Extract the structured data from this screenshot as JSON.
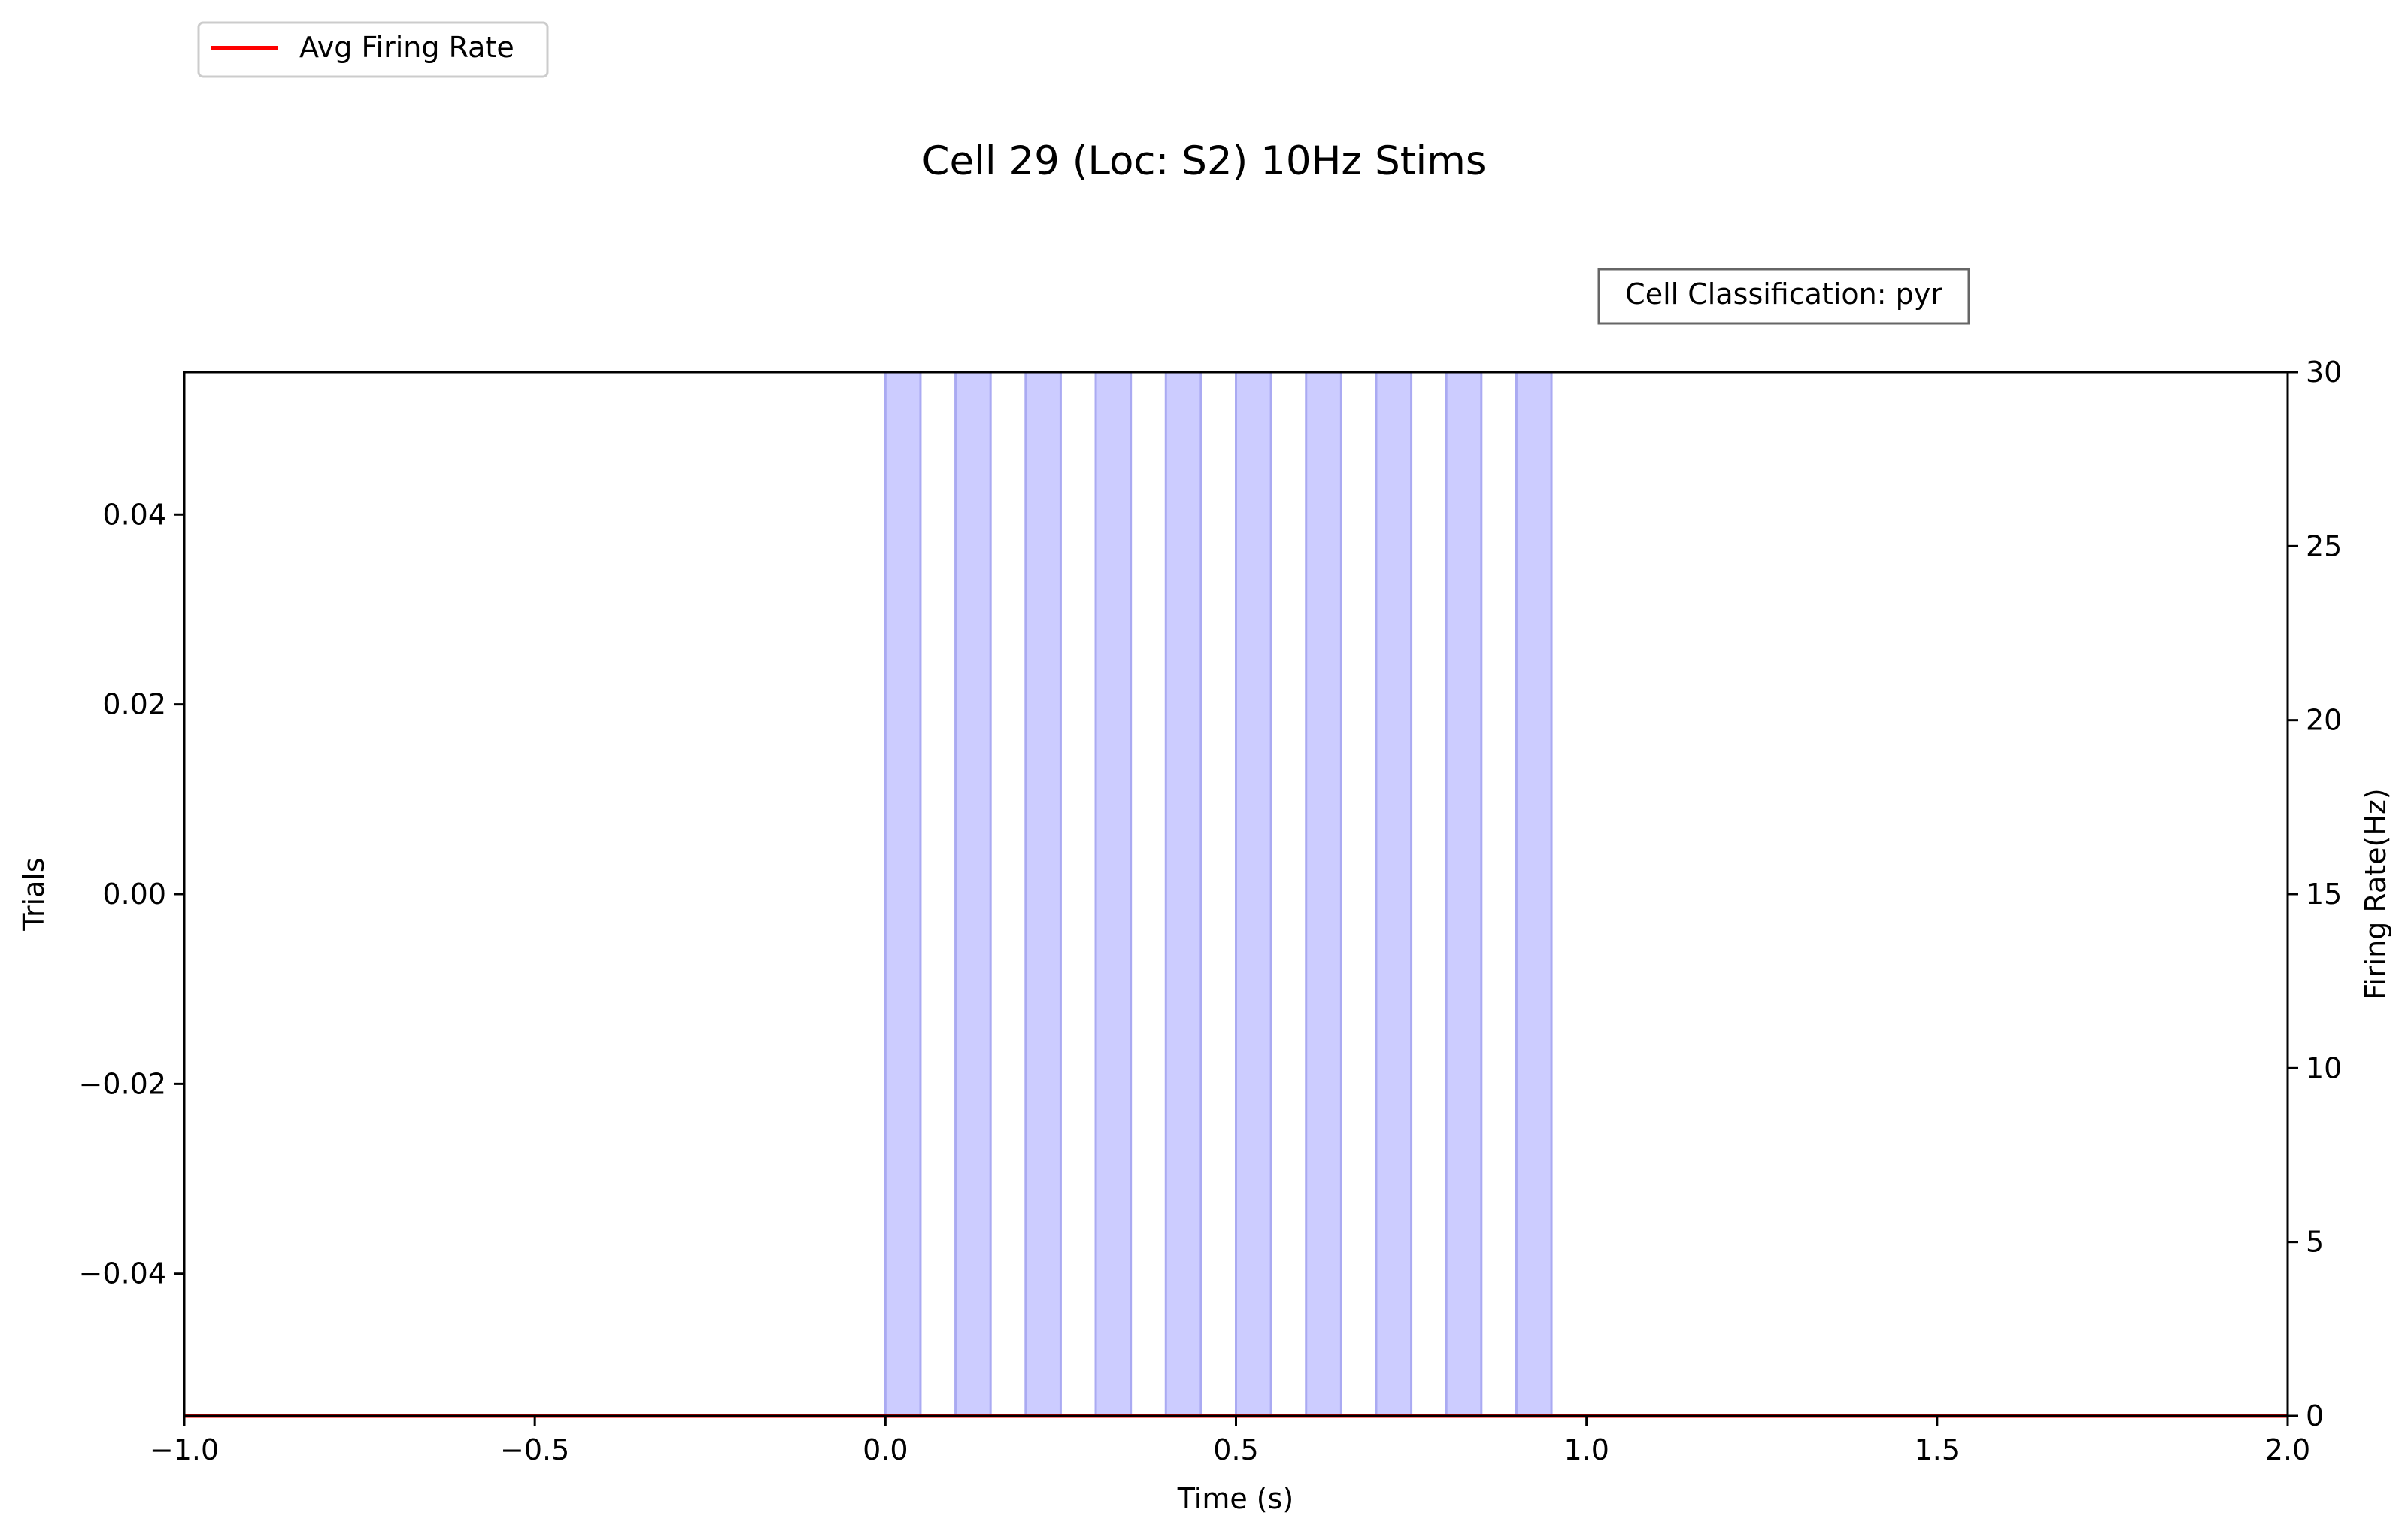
{
  "chart_data": {
    "type": "raster-psth",
    "title": "Cell 29 (Loc: S2) 10Hz Stims",
    "annotation": "Cell Classification: pyr",
    "xlabel": "Time (s)",
    "ylabel_left": "Trials",
    "ylabel_right": "Firing Rate(Hz)",
    "xlim": [
      -1.0,
      2.0
    ],
    "ylim_left": [
      -0.055,
      0.055
    ],
    "ylim_right": [
      0,
      30
    ],
    "x_ticks": [
      -1.0,
      -0.5,
      0.0,
      0.5,
      1.0,
      1.5,
      2.0
    ],
    "x_tick_labels": [
      "−1.0",
      "−0.5",
      "0.0",
      "0.5",
      "1.0",
      "1.5",
      "2.0"
    ],
    "y_left_ticks": [
      0.04,
      0.02,
      0.0,
      -0.02,
      -0.04
    ],
    "y_left_tick_labels": [
      "0.04",
      "0.02",
      "0.00",
      "−0.02",
      "−0.04"
    ],
    "y_right_ticks": [
      0,
      5,
      10,
      15,
      20,
      25,
      30
    ],
    "y_right_tick_labels": [
      "0",
      "5",
      "10",
      "15",
      "20",
      "25",
      "30"
    ],
    "stim_windows": [
      [
        0.0,
        0.05
      ],
      [
        0.1,
        0.15
      ],
      [
        0.2,
        0.25
      ],
      [
        0.3,
        0.35
      ],
      [
        0.4,
        0.45
      ],
      [
        0.5,
        0.55
      ],
      [
        0.6,
        0.65
      ],
      [
        0.7,
        0.75
      ],
      [
        0.8,
        0.85
      ],
      [
        0.9,
        0.95
      ]
    ],
    "stim_color": "#ccccff",
    "stim_edge_color": "#aaaaf2",
    "series": [
      {
        "name": "Avg Firing Rate",
        "color": "#ff0000",
        "x": [
          -1.0,
          2.0
        ],
        "y": [
          0,
          0
        ]
      }
    ],
    "legend_position": "top-left, outside axes"
  }
}
